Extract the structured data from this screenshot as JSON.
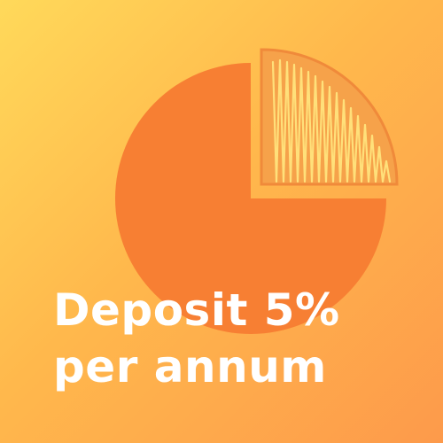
{
  "title_line1": "Deposit 5%",
  "title_line2": "per annum",
  "colors": {
    "background_start": "#ffd95a",
    "background_end": "#fd9a4b",
    "pie_main": "#f77f33",
    "pie_slice_fill": "#f6a24a",
    "hatch": "#ffe07a",
    "text": "#ffffff"
  },
  "pie": {
    "exploded_slice_fraction": 0.25,
    "slice_pattern": "hatched"
  }
}
